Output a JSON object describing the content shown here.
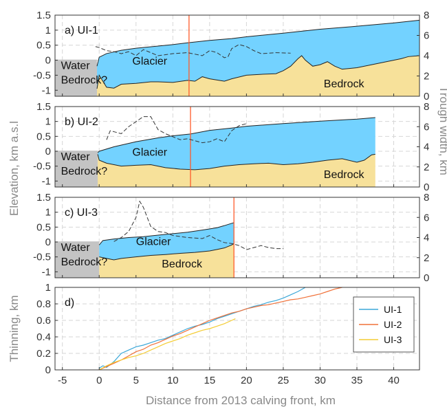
{
  "colors": {
    "water": "#c4c4c4",
    "glacier": "#73d2ff",
    "bedrock": "#f7e19a",
    "front_line": "#ff5a2a",
    "grid": "#d6d6d6",
    "width_line": "#333333",
    "ui1": "#3aa7d8",
    "ui2": "#f07038",
    "ui3": "#f4cc33"
  },
  "labels": {
    "y_left": "Elevation, km a.s.l",
    "y_right": "Trough width, km",
    "y_thinning": "Thinning, km",
    "x": "Distance from 2013 calving front, km"
  },
  "chart_data": [
    {
      "type": "area",
      "panel": "a) UI-1",
      "annotations": [
        "Water",
        "Bedrock?",
        "Glacier",
        "Bedrock"
      ],
      "x_ticks": [
        -5,
        0,
        5,
        10,
        15,
        20,
        25,
        30,
        35,
        40
      ],
      "xlim": [
        -6,
        43.5
      ],
      "ylim": [
        -1.2,
        1.5
      ],
      "y_ticks": [
        "-1",
        "-0.5",
        "0",
        "0.5",
        "1",
        "1.5"
      ],
      "y2lim": [
        0,
        8
      ],
      "y2_ticks": [
        "0",
        "2",
        "4",
        "6",
        "8"
      ],
      "front_x": 12.2,
      "surface": [
        [
          -0.3,
          -0.2
        ],
        [
          0,
          0.1
        ],
        [
          1,
          0.22
        ],
        [
          3,
          0.33
        ],
        [
          5,
          0.4
        ],
        [
          8,
          0.47
        ],
        [
          10,
          0.52
        ],
        [
          12,
          0.58
        ],
        [
          15,
          0.66
        ],
        [
          18,
          0.72
        ],
        [
          20,
          0.78
        ],
        [
          25,
          0.9
        ],
        [
          30,
          1.03
        ],
        [
          35,
          1.13
        ],
        [
          40,
          1.24
        ],
        [
          43.5,
          1.33
        ]
      ],
      "bed": [
        [
          -0.3,
          -0.95
        ],
        [
          0,
          -0.5
        ],
        [
          0.5,
          -0.7
        ],
        [
          1,
          -0.9
        ],
        [
          2,
          -0.93
        ],
        [
          3,
          -0.8
        ],
        [
          5,
          -0.77
        ],
        [
          7,
          -0.72
        ],
        [
          8,
          -0.72
        ],
        [
          10,
          -0.74
        ],
        [
          12,
          -0.67
        ],
        [
          13,
          -0.7
        ],
        [
          14,
          -0.55
        ],
        [
          15,
          -0.62
        ],
        [
          17,
          -0.7
        ],
        [
          18,
          -0.62
        ],
        [
          20,
          -0.5
        ],
        [
          22,
          -0.47
        ],
        [
          24,
          -0.45
        ],
        [
          25,
          -0.35
        ],
        [
          26,
          -0.2
        ],
        [
          27,
          0.05
        ],
        [
          27.5,
          0.15
        ],
        [
          28,
          0.0
        ],
        [
          29,
          -0.2
        ],
        [
          30,
          -0.15
        ],
        [
          31,
          -0.05
        ],
        [
          32,
          -0.2
        ],
        [
          33,
          -0.3
        ],
        [
          35,
          -0.25
        ],
        [
          37,
          -0.15
        ],
        [
          39,
          -0.05
        ],
        [
          41,
          0.05
        ],
        [
          42,
          0.12
        ],
        [
          43.5,
          0.15
        ]
      ],
      "water_region": {
        "xlim": [
          -6,
          -0.3
        ],
        "top": 0.02,
        "bottom": -1.2
      },
      "trough_width": [
        [
          -0.5,
          4.9
        ],
        [
          0,
          4.8
        ],
        [
          1,
          4.5
        ],
        [
          2,
          4.4
        ],
        [
          3,
          4.2
        ],
        [
          4,
          4.4
        ],
        [
          5,
          4.0
        ],
        [
          6,
          4.6
        ],
        [
          8,
          4.0
        ],
        [
          10,
          4.2
        ],
        [
          12,
          4.3
        ],
        [
          14,
          4.0
        ],
        [
          15,
          4.5
        ],
        [
          16,
          4.3
        ],
        [
          17,
          3.8
        ],
        [
          17.5,
          3.9
        ],
        [
          18,
          4.7
        ],
        [
          19,
          5.1
        ],
        [
          20,
          4.9
        ],
        [
          21,
          4.5
        ],
        [
          22,
          4.2
        ],
        [
          24,
          4.3
        ],
        [
          26,
          4.25
        ]
      ]
    },
    {
      "type": "area",
      "panel": "b) UI-2",
      "annotations": [
        "Water",
        "Bedrock?",
        "Glacier",
        "Bedrock"
      ],
      "x_ticks": [
        -5,
        0,
        5,
        10,
        15,
        20,
        25,
        30,
        35,
        40
      ],
      "xlim": [
        -6,
        43.5
      ],
      "ylim": [
        -1.2,
        1.5
      ],
      "y_ticks": [
        "-1",
        "-0.5",
        "0",
        "0.5",
        "1",
        "1.5"
      ],
      "y2lim": [
        0,
        8
      ],
      "y2_ticks": [
        "0",
        "2",
        "4",
        "6",
        "8"
      ],
      "front_x": 12.4,
      "surface": [
        [
          -0.2,
          -0.05
        ],
        [
          0,
          0.0
        ],
        [
          2,
          0.15
        ],
        [
          5,
          0.32
        ],
        [
          8,
          0.45
        ],
        [
          10,
          0.52
        ],
        [
          12.4,
          0.58
        ],
        [
          15,
          0.7
        ],
        [
          18,
          0.78
        ],
        [
          20,
          0.84
        ],
        [
          25,
          0.93
        ],
        [
          30,
          1.01
        ],
        [
          35,
          1.08
        ],
        [
          37.5,
          1.13
        ]
      ],
      "bed": [
        [
          -0.2,
          -0.1
        ],
        [
          0,
          -0.3
        ],
        [
          1,
          -0.4
        ],
        [
          3,
          -0.5
        ],
        [
          5,
          -0.47
        ],
        [
          7,
          -0.45
        ],
        [
          9,
          -0.55
        ],
        [
          11,
          -0.6
        ],
        [
          13,
          -0.62
        ],
        [
          15,
          -0.58
        ],
        [
          17,
          -0.5
        ],
        [
          19,
          -0.45
        ],
        [
          21,
          -0.42
        ],
        [
          23,
          -0.4
        ],
        [
          25,
          -0.45
        ],
        [
          27,
          -0.42
        ],
        [
          29,
          -0.37
        ],
        [
          31,
          -0.3
        ],
        [
          33,
          -0.25
        ],
        [
          35,
          -0.37
        ],
        [
          36,
          -0.3
        ],
        [
          37,
          -0.12
        ],
        [
          37.5,
          -0.1
        ]
      ],
      "end_x": 37.5,
      "water_region": {
        "xlim": [
          -6,
          -0.2
        ],
        "top": 0.02,
        "bottom": -1.2
      },
      "bedrock_question_xlim": [
        -0.2,
        3.1
      ],
      "trough_width": [
        [
          1,
          4.7
        ],
        [
          1.5,
          5.6
        ],
        [
          2,
          5.5
        ],
        [
          3,
          5.3
        ],
        [
          4,
          6.0
        ],
        [
          5,
          6.5
        ],
        [
          6,
          7.0
        ],
        [
          7,
          7.0
        ],
        [
          8,
          5.7
        ],
        [
          9,
          5.3
        ],
        [
          10,
          5.0
        ],
        [
          11,
          4.7
        ],
        [
          12,
          4.8
        ],
        [
          13,
          4.6
        ],
        [
          14,
          4.4
        ],
        [
          15,
          4.5
        ],
        [
          16,
          4.8
        ],
        [
          17,
          4.5
        ],
        [
          18,
          5.6
        ],
        [
          19,
          6.1
        ],
        [
          20,
          6.3
        ]
      ]
    },
    {
      "type": "area",
      "panel": "c) UI-3",
      "annotations": [
        "Water",
        "Bedrock?",
        "Glacier",
        "Bedrock"
      ],
      "x_ticks": [
        -5,
        0,
        5,
        10,
        15,
        20,
        25,
        30,
        35,
        40
      ],
      "xlim": [
        -6,
        43.5
      ],
      "ylim": [
        -1.2,
        1.5
      ],
      "y_ticks": [
        "-1",
        "-0.5",
        "0",
        "0.5",
        "1",
        "1.5"
      ],
      "y2lim": [
        0,
        8
      ],
      "y2_ticks": [
        "0",
        "2",
        "4",
        "6",
        "8"
      ],
      "front_x": 18.3,
      "surface": [
        [
          0,
          -0.1
        ],
        [
          0.5,
          0.05
        ],
        [
          2,
          0.1
        ],
        [
          4,
          0.15
        ],
        [
          6,
          0.18
        ],
        [
          8,
          0.23
        ],
        [
          10,
          0.28
        ],
        [
          12,
          0.33
        ],
        [
          14,
          0.4
        ],
        [
          16,
          0.48
        ],
        [
          17,
          0.55
        ],
        [
          18.3,
          0.65
        ]
      ],
      "bed": [
        [
          0,
          -0.5
        ],
        [
          1,
          -0.55
        ],
        [
          2,
          -0.6
        ],
        [
          3,
          -0.55
        ],
        [
          5,
          -0.5
        ],
        [
          7,
          -0.45
        ],
        [
          9,
          -0.42
        ],
        [
          11,
          -0.38
        ],
        [
          13,
          -0.35
        ],
        [
          15,
          -0.3
        ],
        [
          16,
          -0.25
        ],
        [
          17,
          -0.2
        ],
        [
          18,
          -0.1
        ],
        [
          18.3,
          -0.05
        ]
      ],
      "end_x": 18.3,
      "water_region": {
        "xlim": [
          -6,
          0
        ],
        "top": 0.02,
        "bottom": -1.2
      },
      "trough_width": [
        [
          2,
          3.6
        ],
        [
          3,
          4.0
        ],
        [
          4,
          4.6
        ],
        [
          5,
          6.0
        ],
        [
          5.5,
          7.6
        ],
        [
          6,
          7.0
        ],
        [
          7,
          5.1
        ],
        [
          8,
          4.6
        ],
        [
          9,
          4.5
        ],
        [
          10,
          4.2
        ],
        [
          12,
          4.0
        ],
        [
          14,
          3.9
        ],
        [
          15,
          4.2
        ],
        [
          16,
          3.8
        ],
        [
          17,
          3.5
        ],
        [
          18,
          3.4
        ],
        [
          19,
          3.2
        ],
        [
          20,
          2.8
        ],
        [
          21,
          3.0
        ],
        [
          22,
          3.2
        ],
        [
          23,
          3.0
        ],
        [
          24,
          2.9
        ],
        [
          25,
          2.9
        ]
      ]
    },
    {
      "type": "line",
      "panel": "d)",
      "x_ticks": [
        -5,
        0,
        5,
        10,
        15,
        20,
        25,
        30,
        35,
        40
      ],
      "xlim": [
        -6,
        43.5
      ],
      "ylim": [
        0,
        1
      ],
      "y_ticks": [
        "0",
        "0.2",
        "0.4",
        "0.6",
        "0.8",
        "1"
      ],
      "legend_position": "right",
      "series": [
        {
          "name": "UI-1",
          "color_key": "ui1",
          "points": [
            [
              0,
              0.02
            ],
            [
              0.5,
              0.05
            ],
            [
              1,
              0.03
            ],
            [
              2,
              0.1
            ],
            [
              3,
              0.2
            ],
            [
              4,
              0.24
            ],
            [
              5,
              0.28
            ],
            [
              6,
              0.3
            ],
            [
              7,
              0.33
            ],
            [
              8,
              0.36
            ],
            [
              9,
              0.38
            ],
            [
              10,
              0.42
            ],
            [
              11,
              0.46
            ],
            [
              12,
              0.5
            ],
            [
              13,
              0.53
            ],
            [
              14,
              0.55
            ],
            [
              15,
              0.58
            ],
            [
              16,
              0.62
            ],
            [
              17,
              0.65
            ],
            [
              18,
              0.68
            ],
            [
              19,
              0.71
            ],
            [
              20,
              0.74
            ],
            [
              21,
              0.77
            ],
            [
              22,
              0.79
            ],
            [
              23,
              0.82
            ],
            [
              24,
              0.84
            ],
            [
              25,
              0.87
            ],
            [
              26,
              0.91
            ],
            [
              27,
              0.95
            ],
            [
              28,
              1.0
            ]
          ]
        },
        {
          "name": "UI-2",
          "color_key": "ui2",
          "points": [
            [
              0,
              0.0
            ],
            [
              1,
              0.04
            ],
            [
              2,
              0.08
            ],
            [
              3,
              0.12
            ],
            [
              4,
              0.17
            ],
            [
              5,
              0.22
            ],
            [
              6,
              0.25
            ],
            [
              7,
              0.3
            ],
            [
              8,
              0.33
            ],
            [
              9,
              0.37
            ],
            [
              10,
              0.41
            ],
            [
              11,
              0.44
            ],
            [
              12,
              0.48
            ],
            [
              13,
              0.52
            ],
            [
              14,
              0.56
            ],
            [
              15,
              0.6
            ],
            [
              16,
              0.63
            ],
            [
              17,
              0.66
            ],
            [
              18,
              0.69
            ],
            [
              19,
              0.71
            ],
            [
              20,
              0.74
            ],
            [
              21,
              0.76
            ],
            [
              22,
              0.78
            ],
            [
              23,
              0.79
            ],
            [
              24,
              0.81
            ],
            [
              25,
              0.83
            ],
            [
              26,
              0.85
            ],
            [
              27,
              0.86
            ],
            [
              28,
              0.88
            ],
            [
              29,
              0.9
            ],
            [
              30,
              0.92
            ],
            [
              31,
              0.95
            ],
            [
              32,
              0.98
            ],
            [
              33,
              1.0
            ]
          ]
        },
        {
          "name": "UI-3",
          "color_key": "ui3",
          "points": [
            [
              0,
              0.0
            ],
            [
              1,
              0.05
            ],
            [
              2,
              0.09
            ],
            [
              3,
              0.12
            ],
            [
              4,
              0.15
            ],
            [
              5,
              0.17
            ],
            [
              6,
              0.2
            ],
            [
              7,
              0.24
            ],
            [
              8,
              0.28
            ],
            [
              9,
              0.32
            ],
            [
              10,
              0.35
            ],
            [
              11,
              0.38
            ],
            [
              12,
              0.42
            ],
            [
              13,
              0.45
            ],
            [
              14,
              0.48
            ],
            [
              15,
              0.5
            ],
            [
              16,
              0.53
            ],
            [
              17,
              0.56
            ],
            [
              18,
              0.6
            ],
            [
              18.5,
              0.62
            ]
          ]
        }
      ]
    }
  ]
}
